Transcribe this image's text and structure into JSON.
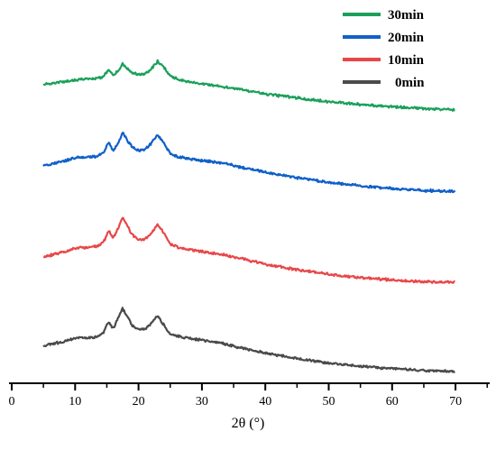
{
  "chart_data": {
    "type": "line",
    "title": "",
    "xlabel": "2θ (°)",
    "ylabel": "",
    "xlim": [
      0,
      75
    ],
    "xticks": [
      0,
      10,
      20,
      30,
      40,
      50,
      60,
      70
    ],
    "yticks_shown": false,
    "grid": false,
    "legend_position": "top-right",
    "series": [
      {
        "name": "30min",
        "color": "#1aa05a",
        "x": [
          5,
          8,
          10,
          12,
          13.5,
          14.5,
          15.3,
          16,
          16.8,
          17.5,
          18.3,
          19,
          20,
          21,
          22,
          23,
          24,
          25,
          26.5,
          28,
          30,
          33,
          35,
          40,
          45,
          50,
          55,
          60,
          65,
          70
        ],
        "y": [
          12.8,
          13.5,
          14.2,
          14.4,
          14.6,
          15.2,
          17.3,
          15.8,
          17.0,
          19.2,
          17.6,
          16.3,
          15.8,
          16.0,
          17.5,
          19.9,
          18.0,
          15.4,
          14.1,
          13.5,
          13.0,
          12.2,
          11.6,
          9.9,
          8.6,
          7.5,
          6.6,
          5.9,
          5.4,
          5.0
        ]
      },
      {
        "name": "20min",
        "color": "#1060c8",
        "x": [
          5,
          8,
          10,
          12,
          13.5,
          14.5,
          15.3,
          16,
          16.8,
          17.5,
          18.3,
          19,
          20,
          21,
          22,
          23,
          24,
          25,
          26.5,
          28,
          30,
          33,
          35,
          40,
          45,
          50,
          55,
          60,
          65,
          70
        ],
        "y": [
          12.8,
          14.0,
          15.2,
          15.4,
          15.6,
          16.8,
          19.9,
          17.4,
          19.6,
          23.0,
          20.4,
          18.5,
          17.4,
          17.7,
          19.6,
          22.2,
          19.6,
          16.4,
          15.4,
          14.9,
          14.3,
          13.7,
          12.8,
          10.7,
          9.0,
          7.6,
          6.5,
          5.7,
          5.1,
          4.9
        ]
      },
      {
        "name": "10min",
        "color": "#e8474a",
        "x": [
          5,
          8,
          10,
          12,
          13.5,
          14.5,
          15.3,
          16,
          16.8,
          17.5,
          18.3,
          19,
          20,
          21,
          22,
          23,
          24,
          25,
          26.5,
          28,
          30,
          33,
          35,
          40,
          45,
          50,
          55,
          60,
          65,
          70
        ],
        "y": [
          12.8,
          14.0,
          15.4,
          15.6,
          15.9,
          17.3,
          20.9,
          18.4,
          21.6,
          24.8,
          22.0,
          19.5,
          17.9,
          18.1,
          19.9,
          22.8,
          19.9,
          16.6,
          15.5,
          15.0,
          14.4,
          13.5,
          12.7,
          10.5,
          8.8,
          7.4,
          6.3,
          5.6,
          5.1,
          4.9
        ]
      },
      {
        "name": "0min",
        "color": "#4a4a4a",
        "x": [
          5,
          8,
          10,
          12,
          13.5,
          14.5,
          15.3,
          16,
          16.8,
          17.5,
          18.3,
          19,
          20,
          21,
          22,
          23,
          24,
          25,
          26.5,
          28,
          30,
          33,
          35,
          40,
          45,
          50,
          55,
          60,
          65,
          70
        ],
        "y": [
          12.8,
          14.1,
          15.1,
          15.3,
          15.6,
          17.0,
          20.3,
          18.1,
          21.5,
          24.3,
          21.6,
          19.2,
          17.8,
          18.0,
          19.7,
          22.1,
          19.2,
          16.4,
          15.6,
          15.2,
          14.6,
          13.7,
          12.7,
          10.6,
          8.9,
          7.5,
          6.5,
          5.8,
          5.2,
          4.9
        ]
      }
    ]
  }
}
